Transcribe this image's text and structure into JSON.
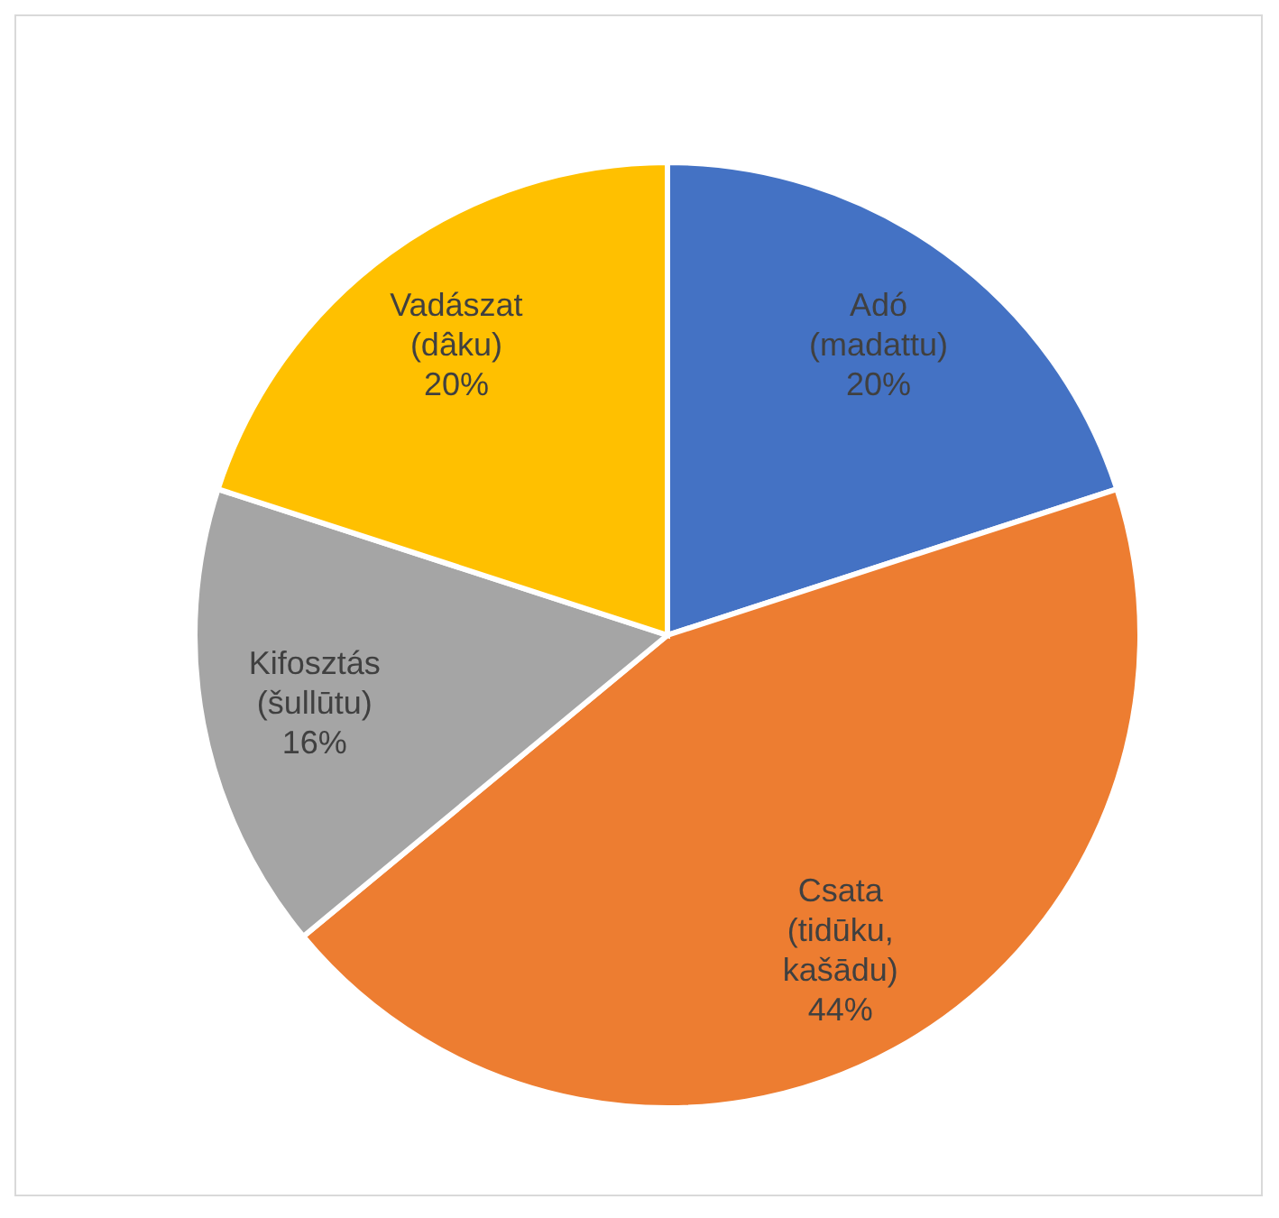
{
  "chart_data": {
    "type": "pie",
    "categories": [
      "Adó (madattu)",
      "Csata (tidūku, kašādu)",
      "Kifosztás (šullūtu)",
      "Vadászat (dâku)"
    ],
    "values": [
      20,
      44,
      16,
      20
    ],
    "colors": [
      "#4472c4",
      "#ed7d31",
      "#a5a5a5",
      "#ffc000"
    ],
    "value_labels": [
      "20%",
      "44%",
      "16%",
      "20%"
    ],
    "legend": false
  }
}
